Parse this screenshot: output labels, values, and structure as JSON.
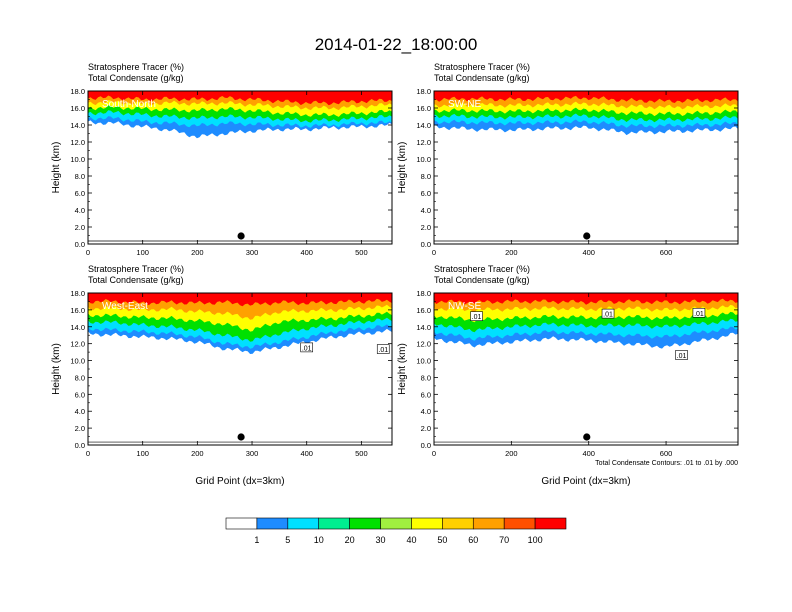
{
  "title": "2014-01-22_18:00:00",
  "colors": [
    "#ffffff",
    "#1e8cff",
    "#00e0ff",
    "#00ee90",
    "#00e000",
    "#a0f040",
    "#ffff00",
    "#ffd000",
    "#ffa000",
    "#ff5000",
    "#ff0000"
  ],
  "colorbar": {
    "labels": [
      "1",
      "5",
      "10",
      "20",
      "30",
      "40",
      "50",
      "60",
      "70",
      "100"
    ]
  },
  "chart_data": [
    {
      "type": "heatmap",
      "title_lines": [
        "Stratosphere Tracer   (%)",
        "Total Condensate   (g/kg)"
      ],
      "panel_label": "South-North",
      "ylabel": "Height (km)",
      "xlabel": "",
      "xlim": [
        0,
        556
      ],
      "ylim": [
        0,
        18
      ],
      "xticks": [
        0,
        100,
        200,
        300,
        400,
        500
      ],
      "yticks": [
        "0.0",
        "2.0",
        "4.0",
        "6.0",
        "8.0",
        "10.0",
        "12.0",
        "14.0",
        "16.0",
        "18.0"
      ],
      "marker_x": 280,
      "tracer_levels_km": {
        "x": [
          0,
          50,
          100,
          150,
          200,
          250,
          300,
          350,
          400,
          450,
          500,
          556
        ],
        "c100": [
          17.2,
          17.2,
          17.0,
          17.1,
          17.0,
          17.2,
          17.0,
          16.8,
          16.6,
          16.6,
          16.8,
          16.9
        ],
        "c70": [
          16.6,
          16.7,
          16.5,
          16.6,
          16.5,
          16.6,
          16.4,
          16.2,
          16.0,
          16.0,
          16.2,
          16.4
        ],
        "c50": [
          16.0,
          16.1,
          15.9,
          15.8,
          15.7,
          15.9,
          15.7,
          15.4,
          15.2,
          15.2,
          15.4,
          15.6
        ],
        "c30": [
          15.4,
          15.5,
          15.2,
          15.0,
          14.8,
          15.0,
          14.9,
          14.7,
          14.5,
          14.6,
          14.8,
          15.0
        ],
        "c10": [
          14.8,
          14.8,
          14.4,
          14.2,
          13.9,
          14.2,
          14.1,
          14.0,
          13.9,
          14.0,
          14.2,
          14.3
        ],
        "c1": [
          14.3,
          14.2,
          13.8,
          13.4,
          12.6,
          13.0,
          13.3,
          13.5,
          13.5,
          13.7,
          13.8,
          14.0
        ]
      },
      "contour_labels": []
    },
    {
      "type": "heatmap",
      "title_lines": [
        "Stratosphere Tracer   (%)",
        "Total Condensate   (g/kg)"
      ],
      "panel_label": "SW-NE",
      "ylabel": "Height (km)",
      "xlabel": "",
      "xlim": [
        0,
        786
      ],
      "ylim": [
        0,
        18
      ],
      "xticks": [
        0,
        200,
        400,
        600
      ],
      "yticks": [
        "0.0",
        "2.0",
        "4.0",
        "6.0",
        "8.0",
        "10.0",
        "12.0",
        "14.0",
        "16.0",
        "18.0"
      ],
      "marker_x": 395,
      "tracer_levels_km": {
        "x": [
          0,
          100,
          200,
          300,
          400,
          500,
          600,
          700,
          786
        ],
        "c100": [
          17.0,
          17.1,
          17.0,
          17.1,
          17.2,
          16.9,
          16.8,
          16.9,
          17.0
        ],
        "c70": [
          16.3,
          16.4,
          16.3,
          16.4,
          16.5,
          16.2,
          16.1,
          16.2,
          16.3
        ],
        "c50": [
          15.7,
          15.7,
          15.6,
          15.7,
          15.8,
          15.4,
          15.3,
          15.4,
          15.6
        ],
        "c30": [
          15.1,
          15.0,
          14.9,
          15.0,
          15.1,
          14.6,
          14.6,
          14.7,
          14.9
        ],
        "c10": [
          14.4,
          14.3,
          14.2,
          14.3,
          14.4,
          13.9,
          13.9,
          14.0,
          14.2
        ],
        "c1": [
          13.8,
          13.5,
          13.4,
          13.6,
          13.7,
          13.1,
          13.2,
          13.4,
          13.6
        ]
      },
      "contour_labels": []
    },
    {
      "type": "heatmap",
      "title_lines": [
        "Stratosphere Tracer   (%)",
        "Total Condensate   (g/kg)"
      ],
      "panel_label": "West-East",
      "ylabel": "Height (km)",
      "xlabel": "Grid Point (dx=3km)",
      "xlim": [
        0,
        556
      ],
      "ylim": [
        0,
        18
      ],
      "xticks": [
        0,
        100,
        200,
        300,
        400,
        500
      ],
      "yticks": [
        "0.0",
        "2.0",
        "4.0",
        "6.0",
        "8.0",
        "10.0",
        "12.0",
        "14.0",
        "16.0",
        "18.0"
      ],
      "marker_x": 280,
      "tracer_levels_km": {
        "x": [
          0,
          50,
          100,
          150,
          200,
          250,
          300,
          350,
          400,
          450,
          500,
          556
        ],
        "c100": [
          17.0,
          17.0,
          16.8,
          16.9,
          16.8,
          16.9,
          16.6,
          16.9,
          16.8,
          16.9,
          17.0,
          17.1
        ],
        "c70": [
          16.2,
          16.2,
          16.0,
          16.1,
          15.8,
          15.6,
          15.0,
          15.8,
          15.9,
          16.0,
          16.2,
          16.4
        ],
        "c50": [
          15.4,
          15.3,
          15.1,
          15.0,
          14.7,
          14.3,
          13.6,
          14.6,
          14.8,
          15.0,
          15.3,
          15.6
        ],
        "c30": [
          14.6,
          14.5,
          14.2,
          14.0,
          13.6,
          13.0,
          12.4,
          13.2,
          13.8,
          14.2,
          14.6,
          14.9
        ],
        "c10": [
          13.8,
          13.6,
          13.4,
          13.2,
          12.8,
          12.0,
          11.6,
          12.2,
          12.8,
          13.4,
          13.8,
          14.1
        ],
        "c1": [
          13.2,
          13.0,
          12.8,
          12.6,
          12.2,
          11.4,
          11.0,
          11.6,
          12.2,
          12.8,
          13.2,
          13.5
        ]
      },
      "contour_labels": [
        {
          "x": 400,
          "y": 11.5,
          "text": ".01"
        },
        {
          "x": 540,
          "y": 11.3,
          "text": ".01"
        }
      ]
    },
    {
      "type": "heatmap",
      "title_lines": [
        "Stratosphere Tracer   (%)",
        "Total Condensate   (g/kg)"
      ],
      "panel_label": "NW-SE",
      "ylabel": "Height (km)",
      "xlabel": "Grid Point (dx=3km)",
      "xlim": [
        0,
        786
      ],
      "ylim": [
        0,
        18
      ],
      "xticks": [
        0,
        200,
        400,
        600
      ],
      "yticks": [
        "0.0",
        "2.0",
        "4.0",
        "6.0",
        "8.0",
        "10.0",
        "12.0",
        "14.0",
        "16.0",
        "18.0"
      ],
      "marker_x": 395,
      "contour_note": "Total Condensate Contours: .01 to .01 by .000",
      "tracer_levels_km": {
        "x": [
          0,
          100,
          200,
          300,
          400,
          500,
          600,
          700,
          786
        ],
        "c100": [
          17.0,
          16.9,
          17.0,
          17.0,
          16.9,
          17.0,
          16.9,
          17.0,
          17.1
        ],
        "c70": [
          16.2,
          16.0,
          16.1,
          16.2,
          16.1,
          16.2,
          16.0,
          16.2,
          16.4
        ],
        "c50": [
          15.3,
          14.8,
          15.0,
          15.2,
          15.1,
          15.2,
          15.0,
          15.3,
          15.6
        ],
        "c30": [
          14.4,
          13.6,
          14.0,
          14.3,
          14.1,
          14.2,
          14.0,
          14.4,
          14.8
        ],
        "c10": [
          13.4,
          12.6,
          13.0,
          13.4,
          13.2,
          13.0,
          12.8,
          13.4,
          13.9
        ],
        "c1": [
          12.6,
          11.8,
          12.2,
          12.6,
          12.4,
          12.0,
          11.6,
          12.4,
          13.2
        ]
      },
      "contour_labels": [
        {
          "x": 110,
          "y": 15.2,
          "text": ".01"
        },
        {
          "x": 450,
          "y": 15.5,
          "text": ".01"
        },
        {
          "x": 640,
          "y": 10.6,
          "text": ".01"
        },
        {
          "x": 685,
          "y": 15.6,
          "text": ".01"
        }
      ]
    }
  ]
}
